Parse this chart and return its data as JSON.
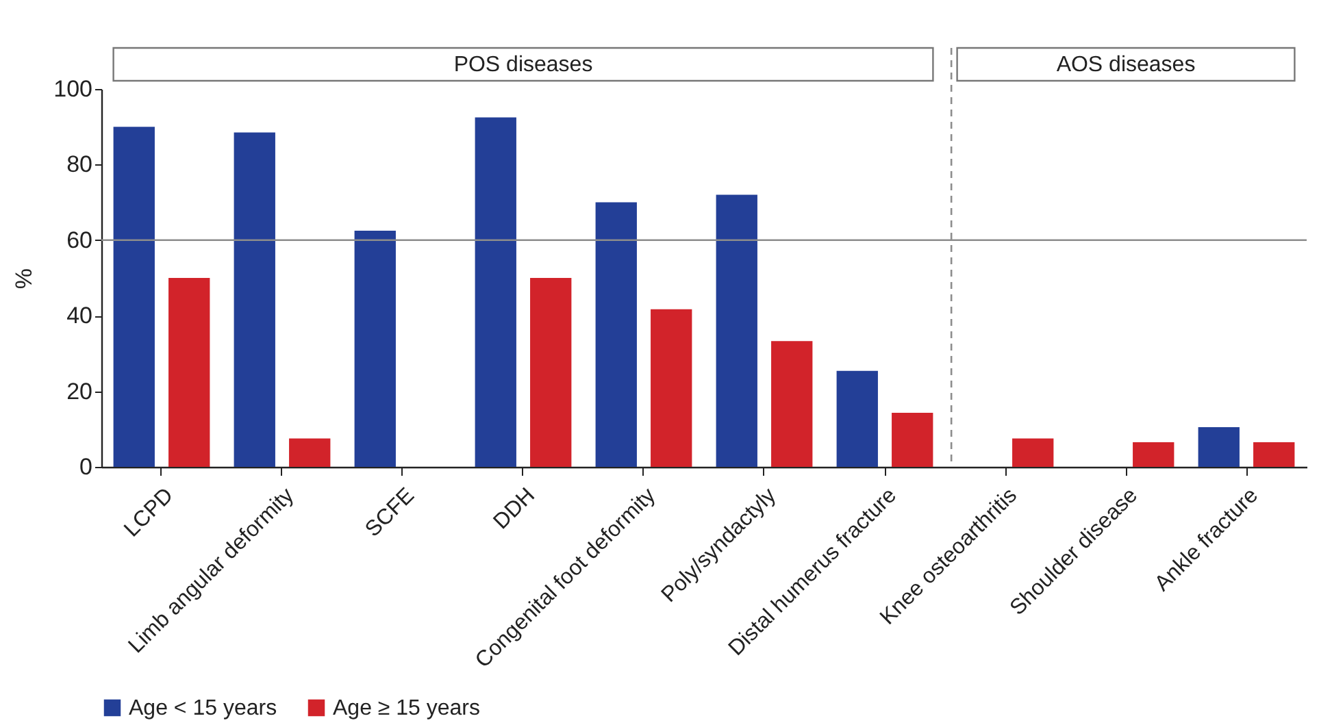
{
  "chart_data": {
    "type": "bar",
    "ylabel": "%",
    "categories": [
      "LCPD",
      "Limb angular deformity",
      "SCFE",
      "DDH",
      "Congenital foot deformity",
      "Poly/syndactyly",
      "Distal humerus fracture",
      "Knee osteoarthritis",
      "Shoulder disease",
      "Ankle fracture"
    ],
    "series": [
      {
        "name": "Age < 15 years",
        "color": "#233f97",
        "values": [
          90,
          88.5,
          62.5,
          92.5,
          70,
          72,
          25.4,
          null,
          null,
          10.5
        ]
      },
      {
        "name": "Age ≥ 15 years",
        "color": "#d2232a",
        "values": [
          50,
          7.5,
          null,
          50,
          41.7,
          33.3,
          14.3,
          7.5,
          6.5,
          6.5
        ]
      }
    ],
    "ylim": [
      0,
      100
    ],
    "yticks": [
      0,
      20,
      40,
      60,
      80,
      100
    ],
    "grid": false,
    "legend": "bottom",
    "ref_lines": [
      {
        "axis": "y",
        "value": 60,
        "color": "#8c8c8c",
        "line_style": "solid"
      },
      {
        "axis": "x",
        "value": "Knee osteoarthritis",
        "color": "#8c8c8c",
        "line_style": "dashed"
      }
    ],
    "annotations": [
      "POS diseases",
      "AOS diseases"
    ]
  }
}
